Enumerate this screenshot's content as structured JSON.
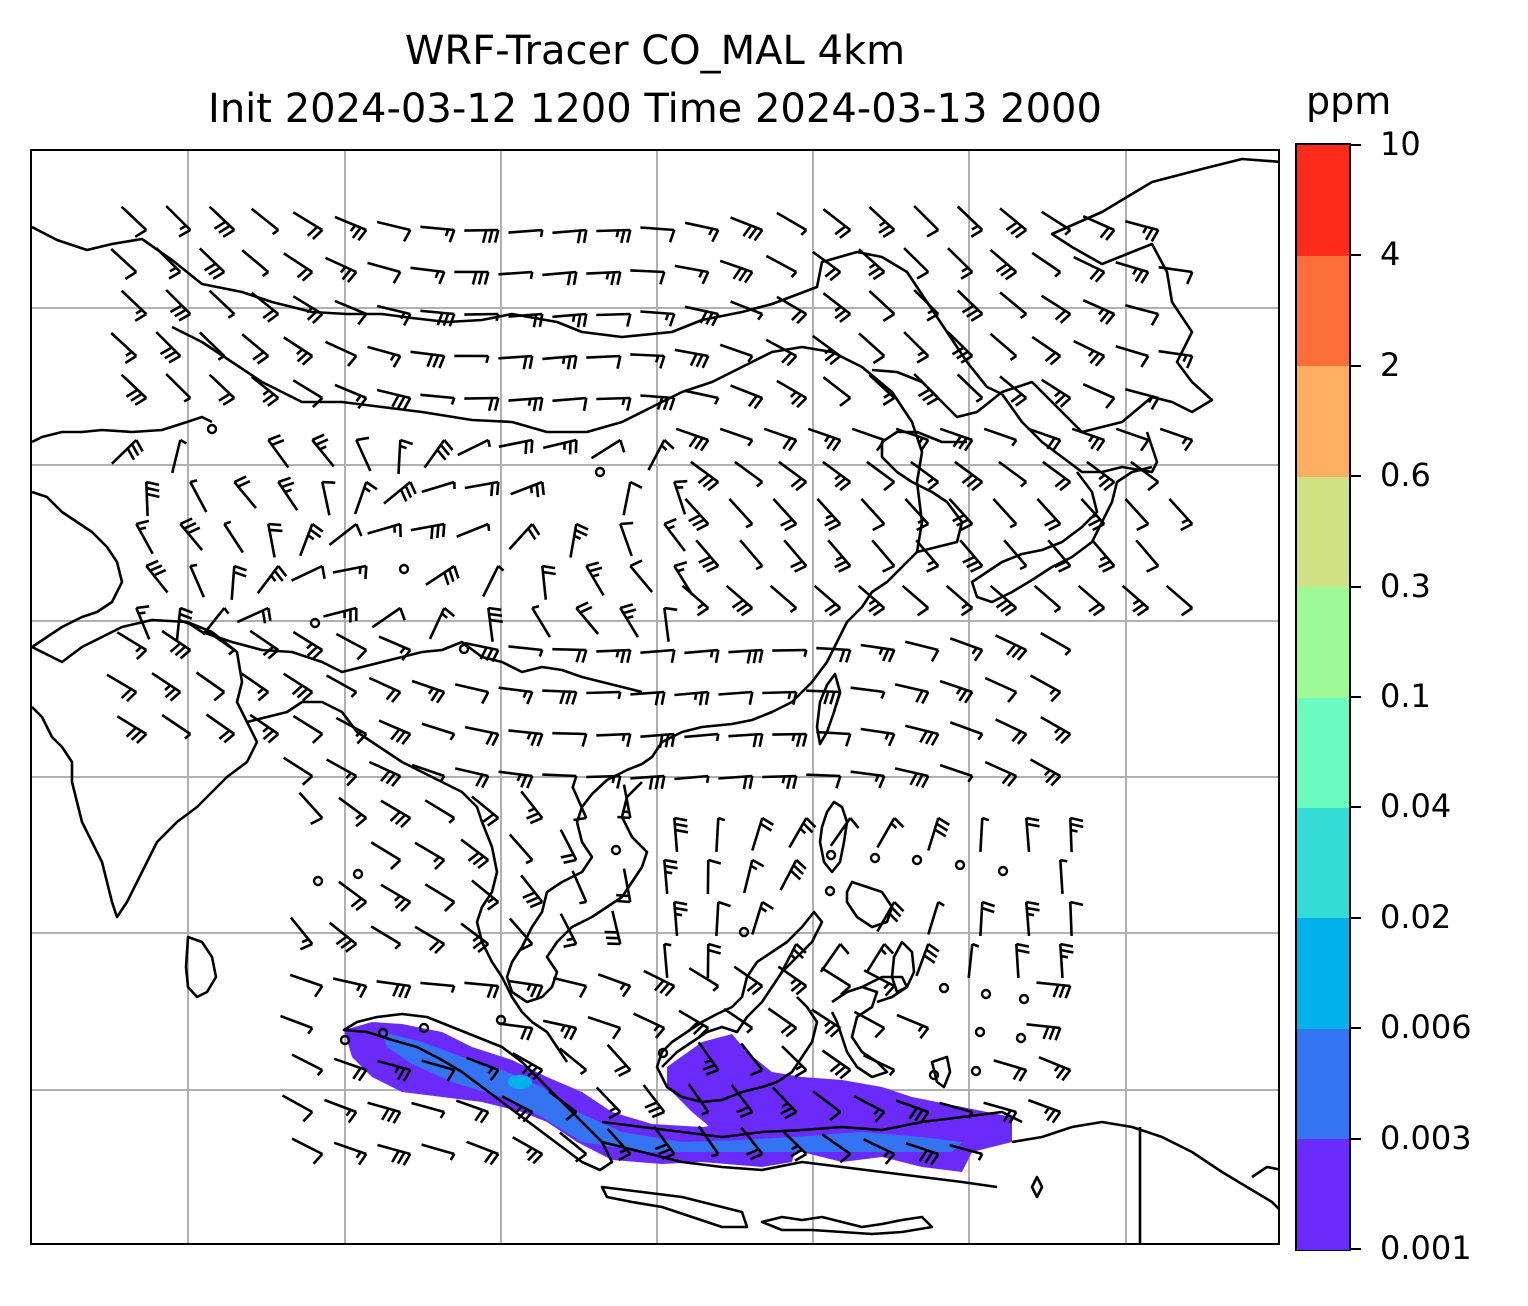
{
  "title": {
    "line1": "WRF-Tracer CO_MAL 4km",
    "line2": "Init 2024-03-12 1200 Time 2024-03-13 2000"
  },
  "colorbar": {
    "unit": "ppm",
    "levels": [
      "0.001",
      "0.003",
      "0.006",
      "0.02",
      "0.04",
      "0.1",
      "0.3",
      "0.6",
      "2",
      "4",
      "10"
    ],
    "colors": [
      "#6a2bfa",
      "#3474f3",
      "#03b2eb",
      "#34dcd6",
      "#6afcbf",
      "#9efa96",
      "#d0e085",
      "#fdaf61",
      "#fd6e3a",
      "#fd2c1a"
    ]
  },
  "map": {
    "projection_grid": "lat-lon gridlines",
    "land_outline_color": "#000000",
    "gridline_color": "#b0b0b0",
    "wind_barb_color": "#000000",
    "tracer_plume_color": "#6a2bfa",
    "tracer_core_color": "#3474f3"
  }
}
